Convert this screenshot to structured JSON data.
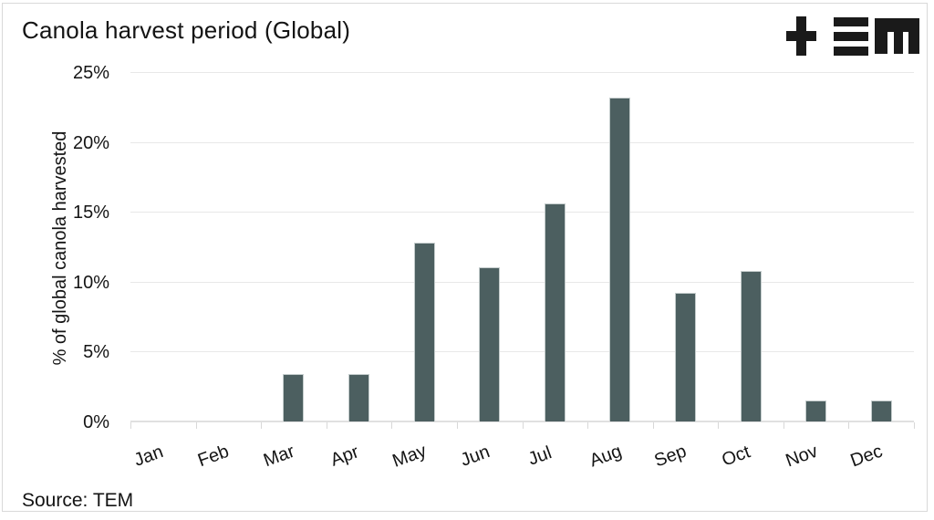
{
  "header": {
    "title": "Canola harvest period (Global)",
    "logo_name": "TEM",
    "logo_glyphs": [
      "plus-icon",
      "triple-bar-icon",
      "square-m-icon"
    ],
    "logo_color": "#1a1a1a"
  },
  "footer": {
    "source": "Source: TEM"
  },
  "chart_data": {
    "type": "bar",
    "title": "Canola harvest period (Global)",
    "categories": [
      "Jan",
      "Feb",
      "Mar",
      "Apr",
      "May",
      "Jun",
      "Jul",
      "Aug",
      "Sep",
      "Oct",
      "Nov",
      "Dec"
    ],
    "values": [
      0,
      0,
      3.4,
      3.4,
      12.8,
      11.0,
      15.6,
      23.2,
      9.2,
      10.8,
      1.5,
      1.5
    ],
    "xlabel": "",
    "ylabel": "% of global canola harvested",
    "ylim": [
      0,
      25
    ],
    "yticks": [
      0,
      5,
      10,
      15,
      20,
      25
    ],
    "ytick_suffix": "%",
    "grid": "horizontal",
    "legend": "none",
    "bar_color": "#4c5f60",
    "bar_border_color": "#c4cccc",
    "gridline_color": "#e8e8e8",
    "source": "Source: TEM"
  }
}
